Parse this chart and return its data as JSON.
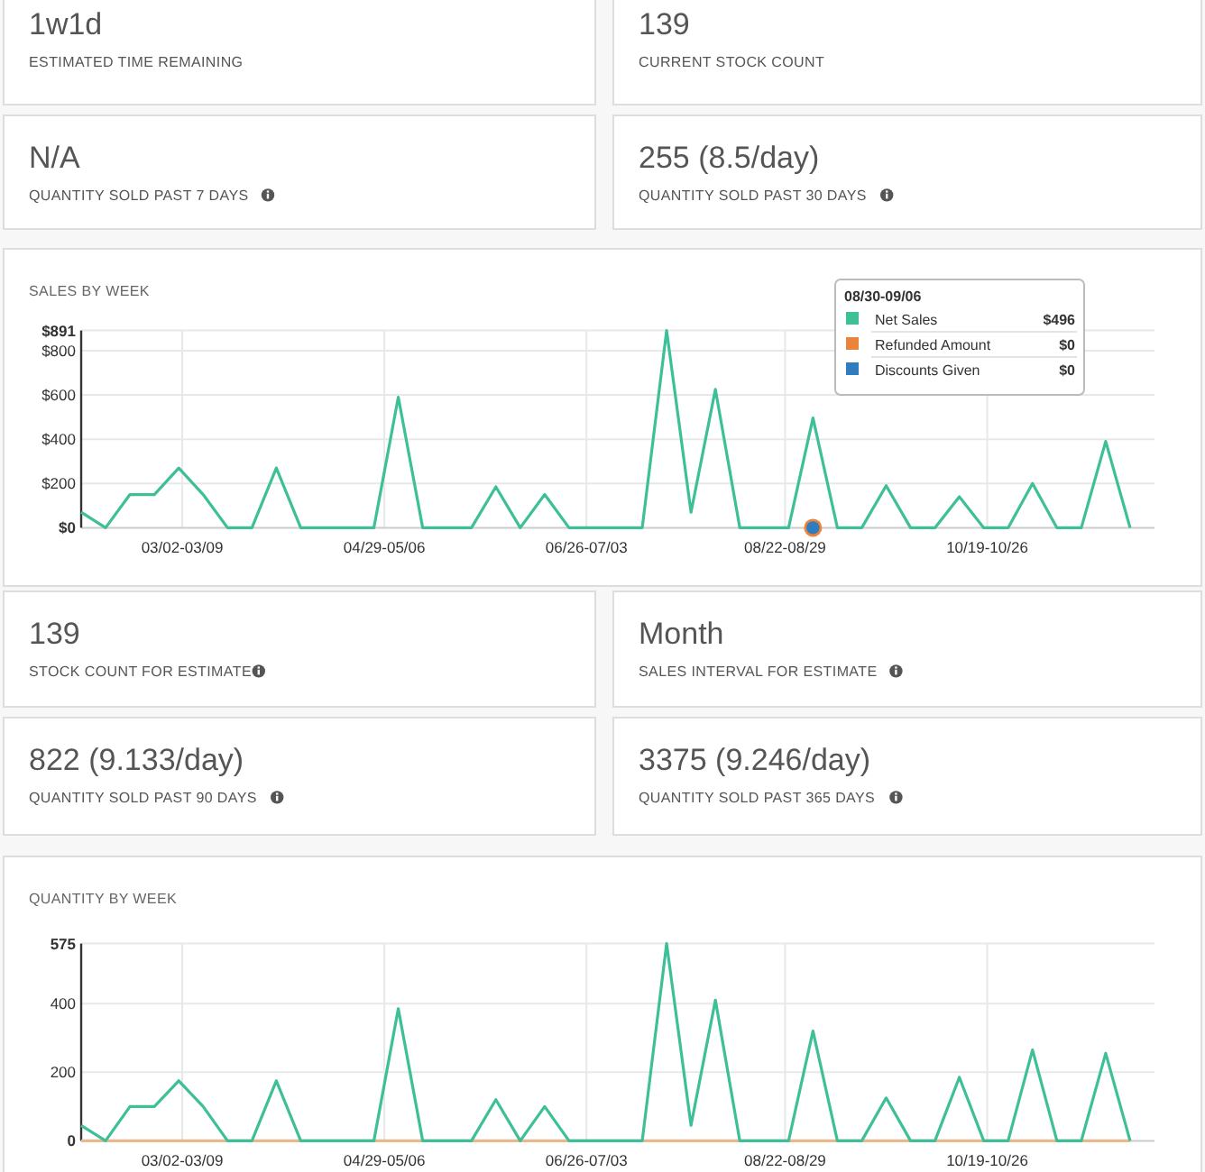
{
  "chart_data": [
    {
      "type": "other",
      "title": "1w1d",
      "subtitle": "ESTIMATED TIME REMAINING"
    },
    {
      "type": "other",
      "title": "139",
      "subtitle": "CURRENT STOCK COUNT"
    },
    {
      "type": "other",
      "title": "N/A",
      "subtitle": "QUANTITY SOLD PAST 7 DAYS"
    },
    {
      "type": "other",
      "title": "255 (8.5/day)",
      "subtitle": "QUANTITY SOLD PAST 30 DAYS"
    },
    {
      "type": "line",
      "title": "SALES BY WEEK",
      "x": [
        "--02-01",
        "--02-08",
        "--02-15",
        "--02-22",
        "--03-01",
        "--03-08",
        "--03-15",
        "--03-22",
        "--03-29",
        "--04-05",
        "--04-12",
        "--04-19",
        "--04-26",
        "--05-03",
        "--05-10",
        "--05-17",
        "--05-24",
        "--05-31",
        "--06-07",
        "--06-14",
        "--06-21",
        "--06-28",
        "--07-05",
        "--07-12",
        "--07-19",
        "--07-26",
        "--08-02",
        "--08-09",
        "--08-16",
        "--08-23",
        "--08-30",
        "--09-06",
        "--09-13",
        "--09-20",
        "--09-27",
        "--10-04",
        "--10-11",
        "--10-18",
        "--10-25",
        "--11-01",
        "--11-08",
        "--11-15",
        "--11-22",
        "--11-29"
      ],
      "series": [
        {
          "name": "Net Sales",
          "color": "#3dbf97",
          "values": [
            70,
            0,
            150,
            150,
            270,
            150,
            0,
            0,
            270,
            0,
            0,
            0,
            0,
            590,
            0,
            0,
            0,
            185,
            0,
            150,
            0,
            0,
            0,
            0,
            891,
            70,
            625,
            0,
            0,
            0,
            496,
            0,
            0,
            190,
            0,
            0,
            140,
            0,
            0,
            200,
            0,
            0,
            390,
            0
          ]
        },
        {
          "name": "Refunded Amount",
          "color": "#e8843c",
          "x": [
            "--08-30"
          ],
          "values": [
            0
          ],
          "marker": "circle"
        },
        {
          "name": "Discounts Given",
          "color": "#2f7cbf",
          "x": [
            "--08-30"
          ],
          "values": [
            0
          ],
          "marker": "circle"
        }
      ],
      "xlim": [
        "--02-01",
        "--12-06"
      ],
      "xticks": [
        {
          "value": "--03-02",
          "label": "03/02-03/09"
        },
        {
          "value": "--04-29",
          "label": "04/29-05/06"
        },
        {
          "value": "--06-26",
          "label": "06/26-07/03"
        },
        {
          "value": "--08-22",
          "label": "08/22-08/29"
        },
        {
          "value": "--10-19",
          "label": "10/19-10/26"
        }
      ],
      "ylim": [
        0,
        891
      ],
      "yticks": [
        {
          "value": 0,
          "label": "$0"
        },
        {
          "value": 200,
          "label": "$200"
        },
        {
          "value": 400,
          "label": "$400"
        },
        {
          "value": 600,
          "label": "$600"
        },
        {
          "value": 800,
          "label": "$800"
        },
        {
          "value": 891,
          "label": "$891"
        }
      ],
      "grid": true,
      "legend": "top right",
      "legend_title": "08/30-09/06",
      "annotations": [
        "$496",
        "$0",
        "$0"
      ]
    },
    {
      "type": "other",
      "title": "139",
      "subtitle": "STOCK COUNT FOR ESTIMATE"
    },
    {
      "type": "other",
      "title": "Month",
      "subtitle": "SALES INTERVAL FOR ESTIMATE"
    },
    {
      "type": "other",
      "title": "822 (9.133/day)",
      "subtitle": "QUANTITY SOLD PAST 90 DAYS"
    },
    {
      "type": "other",
      "title": "3375 (9.246/day)",
      "subtitle": "QUANTITY SOLD PAST 365 DAYS"
    },
    {
      "type": "line",
      "title": "QUANTITY BY WEEK",
      "x": [
        "--02-01",
        "--02-08",
        "--02-15",
        "--02-22",
        "--03-01",
        "--03-08",
        "--03-15",
        "--03-22",
        "--03-29",
        "--04-05",
        "--04-12",
        "--04-19",
        "--04-26",
        "--05-03",
        "--05-10",
        "--05-17",
        "--05-24",
        "--05-31",
        "--06-07",
        "--06-14",
        "--06-21",
        "--06-28",
        "--07-05",
        "--07-12",
        "--07-19",
        "--07-26",
        "--08-02",
        "--08-09",
        "--08-16",
        "--08-23",
        "--08-30",
        "--09-06",
        "--09-13",
        "--09-20",
        "--09-27",
        "--10-04",
        "--10-11",
        "--10-18",
        "--10-25",
        "--11-01",
        "--11-08",
        "--11-15",
        "--11-22",
        "--11-29"
      ],
      "series": [
        {
          "color": "#e8b98c",
          "values": [
            0,
            0,
            0,
            0,
            0,
            0,
            0,
            0,
            0,
            0,
            0,
            0,
            0,
            0,
            0,
            0,
            0,
            0,
            0,
            0,
            0,
            0,
            0,
            0,
            0,
            0,
            0,
            0,
            0,
            0,
            0,
            0,
            0,
            0,
            0,
            0,
            0,
            0,
            0,
            0,
            0,
            0,
            0,
            0
          ]
        },
        {
          "color": "#3dbf97",
          "values": [
            45,
            0,
            100,
            100,
            175,
            100,
            0,
            0,
            175,
            0,
            0,
            0,
            0,
            385,
            0,
            0,
            0,
            120,
            0,
            100,
            0,
            0,
            0,
            0,
            575,
            45,
            410,
            0,
            0,
            0,
            320,
            0,
            0,
            125,
            0,
            0,
            185,
            0,
            0,
            265,
            0,
            0,
            255,
            0
          ]
        }
      ],
      "xlim": [
        "--02-01",
        "--12-06"
      ],
      "xticks": [
        {
          "value": "--03-02",
          "label": "03/02-03/09"
        },
        {
          "value": "--04-29",
          "label": "04/29-05/06"
        },
        {
          "value": "--06-26",
          "label": "06/26-07/03"
        },
        {
          "value": "--08-22",
          "label": "08/22-08/29"
        },
        {
          "value": "--10-19",
          "label": "10/19-10/26"
        }
      ],
      "ylim": [
        0,
        575
      ],
      "yticks": [
        0,
        200,
        400,
        575
      ],
      "grid": true
    }
  ]
}
